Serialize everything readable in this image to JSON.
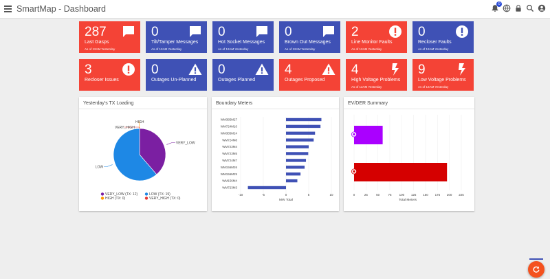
{
  "app": {
    "brand": "SmartMap",
    "title_suffix": " - Dashboard",
    "notification_count": "0"
  },
  "tiles": [
    {
      "value": "287",
      "label": "Last Gasps",
      "sub": "As of 12AM Yesterday",
      "color": "#f44336",
      "icon": "chat-bubble-icon"
    },
    {
      "value": "0",
      "label": "Tilt/Tamper Messages",
      "sub": "As of 12AM Yesterday",
      "color": "#3f51b5",
      "icon": "chat-bubble-icon"
    },
    {
      "value": "0",
      "label": "Hot Socket Messages",
      "sub": "As of 12AM Yesterday",
      "color": "#3f51b5",
      "icon": "chat-bubble-icon"
    },
    {
      "value": "0",
      "label": "Brown Out Messages",
      "sub": "As of 12AM Yesterday",
      "color": "#3f51b5",
      "icon": "chat-bubble-icon"
    },
    {
      "value": "2",
      "label": "Line Monitor Faults",
      "sub": "As of 12AM Yesterday",
      "color": "#f44336",
      "icon": "alert-circle-icon"
    },
    {
      "value": "0",
      "label": "Recloser Faults",
      "sub": "As of 12AM Yesterday",
      "color": "#3f51b5",
      "icon": "alert-circle-icon"
    },
    {
      "value": "3",
      "label": "Recloser Issues",
      "sub": "",
      "color": "#f44336",
      "icon": "alert-circle-icon"
    },
    {
      "value": "0",
      "label": "Outages Un-Planned",
      "sub": "",
      "color": "#3f51b5",
      "icon": "warning-triangle-icon"
    },
    {
      "value": "0",
      "label": "Outages Planned",
      "sub": "",
      "color": "#3f51b5",
      "icon": "warning-triangle-icon"
    },
    {
      "value": "4",
      "label": "Outages Proposed",
      "sub": "",
      "color": "#f44336",
      "icon": "warning-triangle-icon"
    },
    {
      "value": "4",
      "label": "High Voltage Problems",
      "sub": "As of 12AM Yesterday",
      "color": "#f44336",
      "icon": "lightning-bolt-icon"
    },
    {
      "value": "9",
      "label": "Low Voltage Problems",
      "sub": "As of 12AM Yesterday",
      "color": "#f44336",
      "icon": "lightning-bolt-icon"
    }
  ],
  "cards": {
    "tx": {
      "title": "Yesterday's TX Loading"
    },
    "boundary": {
      "title": "Boundary Meters"
    },
    "ev": {
      "title": "EV/DER Summary"
    }
  },
  "chart_data": [
    {
      "type": "pie",
      "title": "Yesterday's TX Loading",
      "slices": [
        {
          "label": "VERY_LOW",
          "value": 12,
          "color": "#7b1fa2"
        },
        {
          "label": "LOW",
          "value": 19,
          "color": "#1e88e5"
        },
        {
          "label": "HIGH",
          "value": 0,
          "color": "#ff9800"
        },
        {
          "label": "VERY_HIGH",
          "value": 0,
          "color": "#e53935"
        }
      ],
      "legend": [
        "VERY_LOW (TX: 12)",
        "LOW (TX: 19)",
        "HIGH (TX: 0)",
        "VERY_HIGH (TX: 0)"
      ],
      "legend_position": "bottom"
    },
    {
      "type": "bar",
      "orientation": "horizontal",
      "title": "Boundary Meters",
      "categories": [
        "WM385M27",
        "WM724M10",
        "WM385M24",
        "WM724M8",
        "WM723M4",
        "WM723M5",
        "WM724M7",
        "WM156M26",
        "WM156M25",
        "WM156M4",
        "WM723M3"
      ],
      "values": [
        7.8,
        7.6,
        6.4,
        6.1,
        5.0,
        4.9,
        4.4,
        4.1,
        3.2,
        2.5,
        -8.4
      ],
      "xlabel": "MW Total",
      "xticks": [
        -10,
        -5,
        0,
        5,
        10
      ],
      "xlim": [
        -10,
        10
      ],
      "color": "#3f51b5"
    },
    {
      "type": "bar",
      "orientation": "horizontal",
      "title": "EV/DER Summary",
      "series": [
        {
          "icon": "ev-car-icon",
          "value": 60,
          "color": "#aa00ff"
        },
        {
          "icon": "solar-icon",
          "value": 195,
          "color": "#d50000"
        }
      ],
      "xlabel": "Total Meters",
      "xticks": [
        0,
        25,
        50,
        75,
        100,
        125,
        150,
        175,
        200,
        225
      ],
      "xlim": [
        0,
        225
      ]
    }
  ]
}
